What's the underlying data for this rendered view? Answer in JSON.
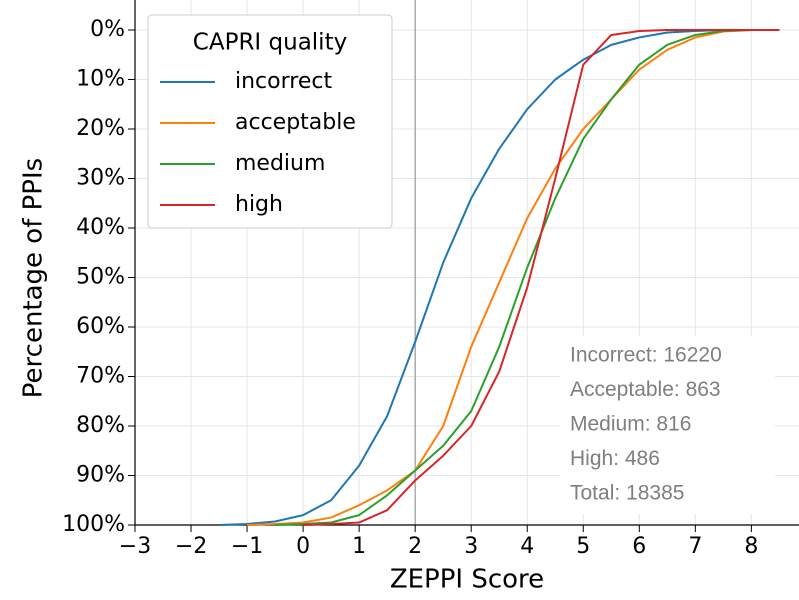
{
  "chart_data": {
    "type": "line",
    "x_label": "ZEPPI Score",
    "y_label": "Percentage of PPIs",
    "x": [
      -2,
      -1.5,
      -1,
      -0.5,
      0,
      0.5,
      1,
      1.5,
      2,
      2.5,
      3,
      3.5,
      4,
      4.5,
      5,
      5.5,
      6,
      6.5,
      7,
      7.5,
      8,
      8.5
    ],
    "series": [
      {
        "name": "incorrect",
        "color": "#1f77b4",
        "values": [
          null,
          100,
          99.8,
          99.3,
          98,
          95,
          88,
          78,
          63,
          47,
          34,
          24,
          16,
          10,
          6,
          3,
          1.5,
          0.5,
          0.2,
          0,
          0,
          0
        ]
      },
      {
        "name": "acceptable",
        "color": "#ff7f0e",
        "values": [
          null,
          null,
          100,
          99.8,
          99.5,
          98.5,
          96,
          93,
          89,
          80,
          64,
          51,
          38,
          28,
          20,
          14,
          8,
          4,
          1.5,
          0.3,
          0,
          0
        ]
      },
      {
        "name": "medium",
        "color": "#2ca02c",
        "values": [
          null,
          null,
          null,
          100,
          99.8,
          99.5,
          98,
          94,
          89,
          84,
          77,
          64,
          48,
          34,
          22,
          14,
          7,
          3,
          1,
          0.2,
          0,
          0
        ]
      },
      {
        "name": "high",
        "color": "#d62728",
        "values": [
          null,
          null,
          null,
          null,
          100,
          99.8,
          99.5,
          97,
          91,
          86,
          80,
          69,
          52,
          30,
          7,
          1,
          0.2,
          0,
          0,
          0,
          0,
          0
        ]
      }
    ],
    "legend_title": "CAPRI quality",
    "legend": "upper left",
    "xlim": [
      -3,
      8.85
    ],
    "xticks": [
      {
        "value": -3,
        "label": "−3"
      },
      {
        "value": -2,
        "label": "−2"
      },
      {
        "value": -1,
        "label": "−1"
      },
      0,
      1,
      2,
      3,
      4,
      5,
      6,
      7,
      8
    ],
    "ylim": [
      100,
      0
    ],
    "yticks": [
      {
        "value": 0,
        "label": "0%"
      },
      {
        "value": 10,
        "label": "10%"
      },
      {
        "value": 20,
        "label": "20%"
      },
      {
        "value": 30,
        "label": "30%"
      },
      {
        "value": 40,
        "label": "40%"
      },
      {
        "value": 50,
        "label": "50%"
      },
      {
        "value": 60,
        "label": "60%"
      },
      {
        "value": 70,
        "label": "70%"
      },
      {
        "value": 80,
        "label": "80%"
      },
      {
        "value": 90,
        "label": "90%"
      },
      {
        "value": 100,
        "label": "100%"
      }
    ],
    "grid": true,
    "vline": 2,
    "annotations": [
      "Incorrect: 16220",
      "Acceptable: 863",
      "Medium: 816",
      "High: 486",
      "Total: 18385"
    ]
  }
}
